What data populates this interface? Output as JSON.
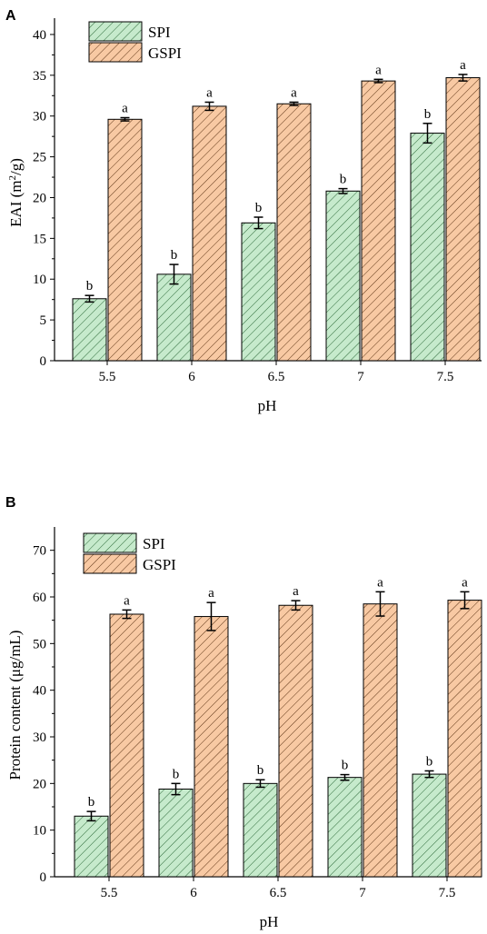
{
  "panels": [
    {
      "letter": "A",
      "chart_data": {
        "type": "bar",
        "categories": [
          "5.5",
          "6",
          "6.5",
          "7",
          "7.5"
        ],
        "series": [
          {
            "name": "SPI",
            "values": [
              7.6,
              10.6,
              16.9,
              20.8,
              27.9
            ],
            "errors": [
              0.4,
              1.2,
              0.7,
              0.3,
              1.2
            ],
            "labels": [
              "b",
              "b",
              "b",
              "b",
              "b"
            ],
            "fill": "#c6eacc",
            "hatch": "#2e6b3a"
          },
          {
            "name": "GSPI",
            "values": [
              29.6,
              31.2,
              31.5,
              34.3,
              34.7
            ],
            "errors": [
              0.2,
              0.5,
              0.2,
              0.2,
              0.4
            ],
            "labels": [
              "a",
              "a",
              "a",
              "a",
              "a"
            ],
            "fill": "#f8c9a3",
            "hatch": "#5e3516"
          }
        ],
        "xlabel": "pH",
        "ylabel": "EAI (m²/g)",
        "ylabel_main": "EAI (m",
        "ylabel_sup": "2",
        "ylabel_end": "/g)",
        "ylim": [
          0,
          42
        ],
        "yticks": [
          0,
          5,
          10,
          15,
          20,
          25,
          30,
          35,
          40
        ],
        "legend_position": "top-left",
        "grid": false
      }
    },
    {
      "letter": "B",
      "chart_data": {
        "type": "bar",
        "categories": [
          "5.5",
          "6",
          "6.5",
          "7",
          "7.5"
        ],
        "series": [
          {
            "name": "SPI",
            "values": [
              13.0,
              18.8,
              20.0,
              21.3,
              22.0
            ],
            "errors": [
              1.0,
              1.2,
              0.8,
              0.6,
              0.7
            ],
            "labels": [
              "b",
              "b",
              "b",
              "b",
              "b"
            ],
            "fill": "#c6eacc",
            "hatch": "#2e6b3a"
          },
          {
            "name": "GSPI",
            "values": [
              56.3,
              55.8,
              58.2,
              58.5,
              59.3
            ],
            "errors": [
              0.9,
              3.0,
              1.0,
              2.6,
              1.8
            ],
            "labels": [
              "a",
              "a",
              "a",
              "a",
              "a"
            ],
            "fill": "#f8c9a3",
            "hatch": "#5e3516"
          }
        ],
        "xlabel": "pH",
        "ylabel": "Protein content (μg/mL)",
        "ylim": [
          0,
          75
        ],
        "yticks": [
          0,
          10,
          20,
          30,
          40,
          50,
          60,
          70
        ],
        "legend_position": "top-left",
        "grid": false
      }
    }
  ]
}
